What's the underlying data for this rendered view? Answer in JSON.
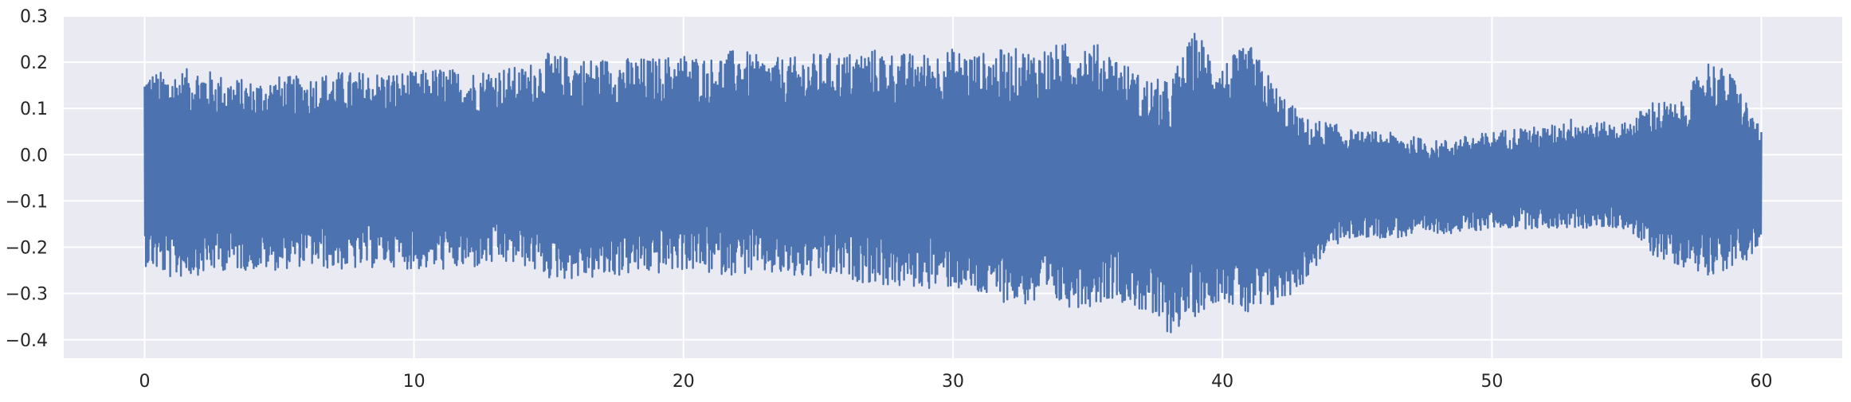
{
  "chart_data": {
    "type": "line",
    "title": "",
    "xlabel": "",
    "ylabel": "",
    "xlim": [
      -3,
      63
    ],
    "ylim": [
      -0.44,
      0.3
    ],
    "xticks": [
      0,
      10,
      20,
      30,
      40,
      50,
      60
    ],
    "yticks": [
      -0.4,
      -0.3,
      -0.2,
      -0.1,
      0.0,
      0.1,
      0.2,
      0.3
    ],
    "xtick_labels": [
      "0",
      "10",
      "20",
      "30",
      "40",
      "50",
      "60"
    ],
    "ytick_labels": [
      "−0.4",
      "−0.3",
      "−0.2",
      "−0.1",
      "0.0",
      "0.1",
      "0.2",
      "0.3"
    ],
    "grid": true,
    "colors": {
      "background": "#EAEAF2",
      "grid": "#FFFFFF",
      "line": "#4C72B0"
    },
    "series": [
      {
        "x": [
          0,
          1,
          2,
          3,
          4,
          5,
          6,
          7,
          8,
          9,
          10,
          11,
          12,
          13,
          14,
          15,
          16,
          17,
          18,
          19,
          20,
          21,
          22,
          23,
          24,
          25,
          26,
          27,
          28,
          29,
          30,
          31,
          32,
          33,
          34,
          35,
          36,
          37,
          38,
          39,
          40,
          41,
          42,
          43,
          44,
          45,
          46,
          47,
          48,
          49,
          50,
          51,
          52,
          53,
          54,
          55,
          56,
          57,
          58,
          59,
          60
        ],
        "upper": [
          0.18,
          0.18,
          0.19,
          0.17,
          0.16,
          0.17,
          0.17,
          0.18,
          0.18,
          0.18,
          0.18,
          0.19,
          0.18,
          0.19,
          0.19,
          0.22,
          0.21,
          0.21,
          0.21,
          0.21,
          0.22,
          0.21,
          0.23,
          0.21,
          0.21,
          0.22,
          0.22,
          0.23,
          0.22,
          0.22,
          0.23,
          0.22,
          0.23,
          0.23,
          0.24,
          0.25,
          0.22,
          0.17,
          0.16,
          0.27,
          0.2,
          0.24,
          0.15,
          0.08,
          0.07,
          0.05,
          0.05,
          0.04,
          0.03,
          0.04,
          0.05,
          0.06,
          0.06,
          0.08,
          0.07,
          0.07,
          0.12,
          0.11,
          0.21,
          0.17,
          0.05
        ],
        "lower": [
          -0.24,
          -0.27,
          -0.26,
          -0.25,
          -0.25,
          -0.25,
          -0.24,
          -0.25,
          -0.25,
          -0.24,
          -0.25,
          -0.25,
          -0.25,
          -0.24,
          -0.24,
          -0.27,
          -0.27,
          -0.27,
          -0.26,
          -0.26,
          -0.25,
          -0.26,
          -0.26,
          -0.26,
          -0.27,
          -0.27,
          -0.27,
          -0.28,
          -0.29,
          -0.29,
          -0.29,
          -0.31,
          -0.32,
          -0.33,
          -0.33,
          -0.33,
          -0.31,
          -0.34,
          -0.39,
          -0.35,
          -0.31,
          -0.36,
          -0.33,
          -0.28,
          -0.2,
          -0.18,
          -0.18,
          -0.18,
          -0.17,
          -0.17,
          -0.16,
          -0.16,
          -0.16,
          -0.16,
          -0.16,
          -0.16,
          -0.22,
          -0.24,
          -0.26,
          -0.25,
          -0.2
        ]
      }
    ]
  }
}
